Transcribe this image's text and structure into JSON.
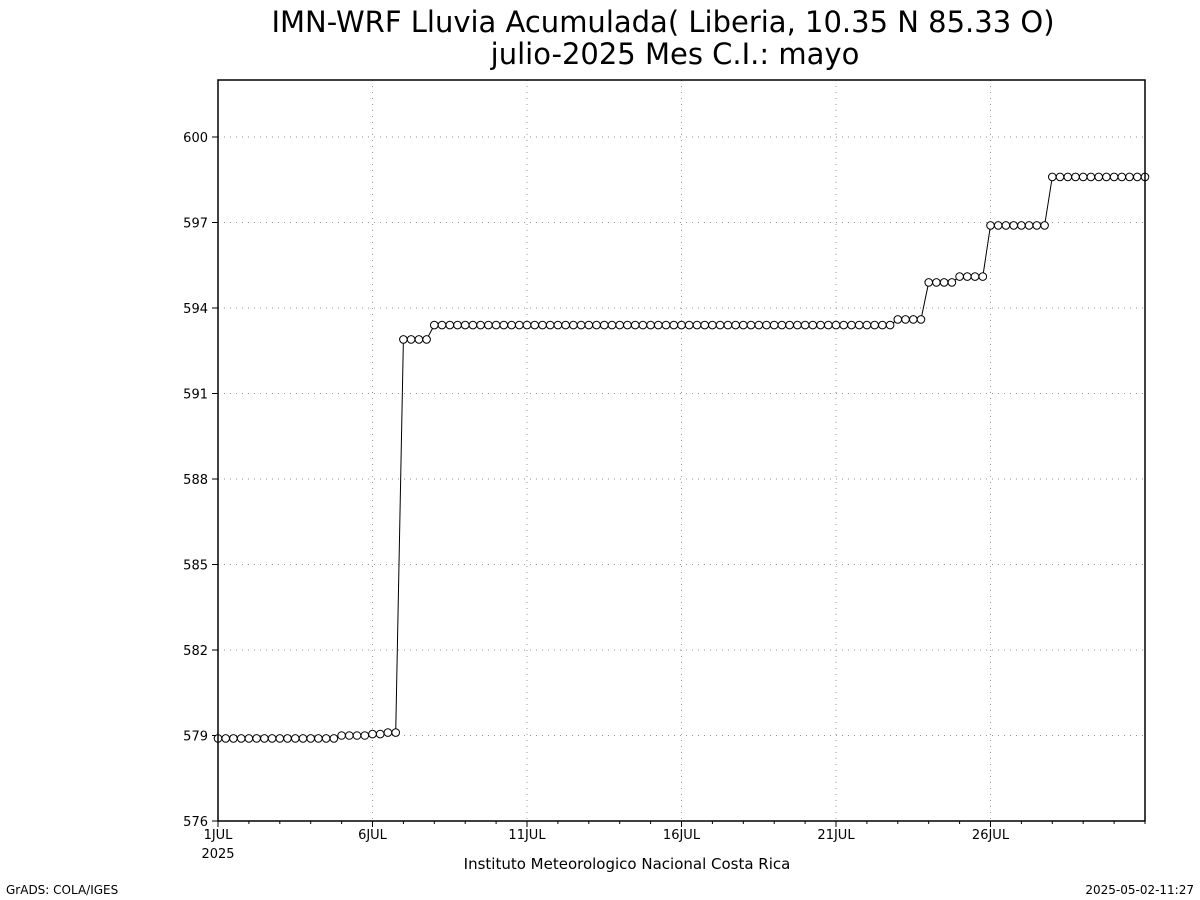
{
  "chart_data": {
    "type": "line",
    "title": "IMN-WRF  Lluvia Acumulada( Liberia, 10.35  N 85.33  O)",
    "subtitle": "julio-2025 Mes C.I.: mayo",
    "xlabel": "Instituto Meteorologico Nacional Costa Rica",
    "ylabel": "",
    "ylim": [
      576,
      602
    ],
    "xlim": [
      1,
      31
    ],
    "grid": true,
    "marker": "circle",
    "y_ticks": [
      576,
      579,
      582,
      585,
      588,
      591,
      594,
      597,
      600
    ],
    "y_tick_labels": [
      "576",
      "579",
      "582",
      "585",
      "588",
      "591",
      "594",
      "597",
      "600"
    ],
    "x_ticks": [
      1,
      6,
      11,
      16,
      21,
      26
    ],
    "x_tick_labels": [
      "1JUL",
      "6JUL",
      "11JUL",
      "16JUL",
      "21JUL",
      "26JUL"
    ],
    "x_sub_label": "2025",
    "x_unit": "day of July 2025",
    "series": [
      {
        "values": [
          578.9,
          578.9,
          578.9,
          578.9,
          578.9,
          578.9,
          578.9,
          578.9,
          578.9,
          578.9,
          578.9,
          578.9,
          578.9,
          578.9,
          578.9,
          578.9,
          579.0,
          579.0,
          579.0,
          579.0,
          579.05,
          579.05,
          579.1,
          579.1,
          592.9,
          592.9,
          592.9,
          592.9,
          593.4,
          593.4,
          593.4,
          593.4,
          593.4,
          593.4,
          593.4,
          593.4,
          593.4,
          593.4,
          593.4,
          593.4,
          593.4,
          593.4,
          593.4,
          593.4,
          593.4,
          593.4,
          593.4,
          593.4,
          593.4,
          593.4,
          593.4,
          593.4,
          593.4,
          593.4,
          593.4,
          593.4,
          593.4,
          593.4,
          593.4,
          593.4,
          593.4,
          593.4,
          593.4,
          593.4,
          593.4,
          593.4,
          593.4,
          593.4,
          593.4,
          593.4,
          593.4,
          593.4,
          593.4,
          593.4,
          593.4,
          593.4,
          593.4,
          593.4,
          593.4,
          593.4,
          593.4,
          593.4,
          593.4,
          593.4,
          593.4,
          593.4,
          593.4,
          593.4,
          593.6,
          593.6,
          593.6,
          593.6,
          594.9,
          594.9,
          594.9,
          594.9,
          595.1,
          595.1,
          595.1,
          595.1,
          596.9,
          596.9,
          596.9,
          596.9,
          596.9,
          596.9,
          596.9,
          596.9,
          598.6,
          598.6,
          598.6,
          598.6,
          598.6,
          598.6,
          598.6,
          598.6,
          598.6,
          598.6,
          598.6,
          598.6,
          598.6
        ]
      }
    ]
  },
  "footer": {
    "left": "GrADS: COLA/IGES",
    "right": "2025-05-02-11:27"
  }
}
